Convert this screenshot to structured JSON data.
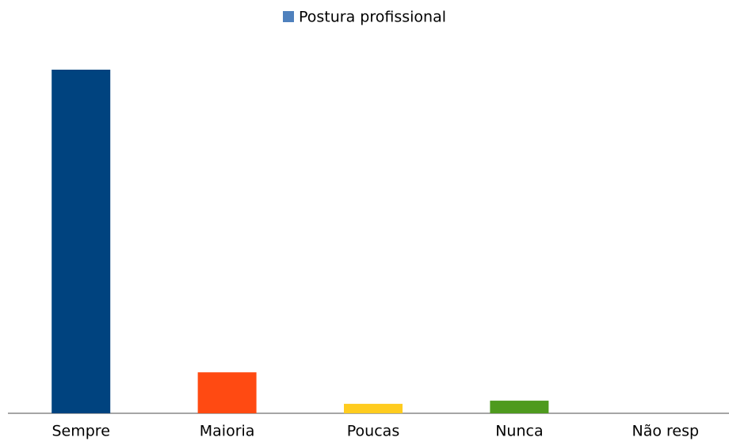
{
  "chart_data": {
    "type": "bar",
    "legend": {
      "name": "Postura profissional",
      "color": "#4f81bd"
    },
    "categories": [
      "Sempre",
      "Maioria",
      "Poucas",
      "Nunca",
      "Não resp"
    ],
    "values": [
      109,
      13,
      3,
      4,
      0
    ],
    "colors": [
      "#00437f",
      "#ff4a12",
      "#ffcc1f",
      "#4e9a1e",
      "#888888"
    ],
    "ylim": [
      0,
      109
    ]
  }
}
